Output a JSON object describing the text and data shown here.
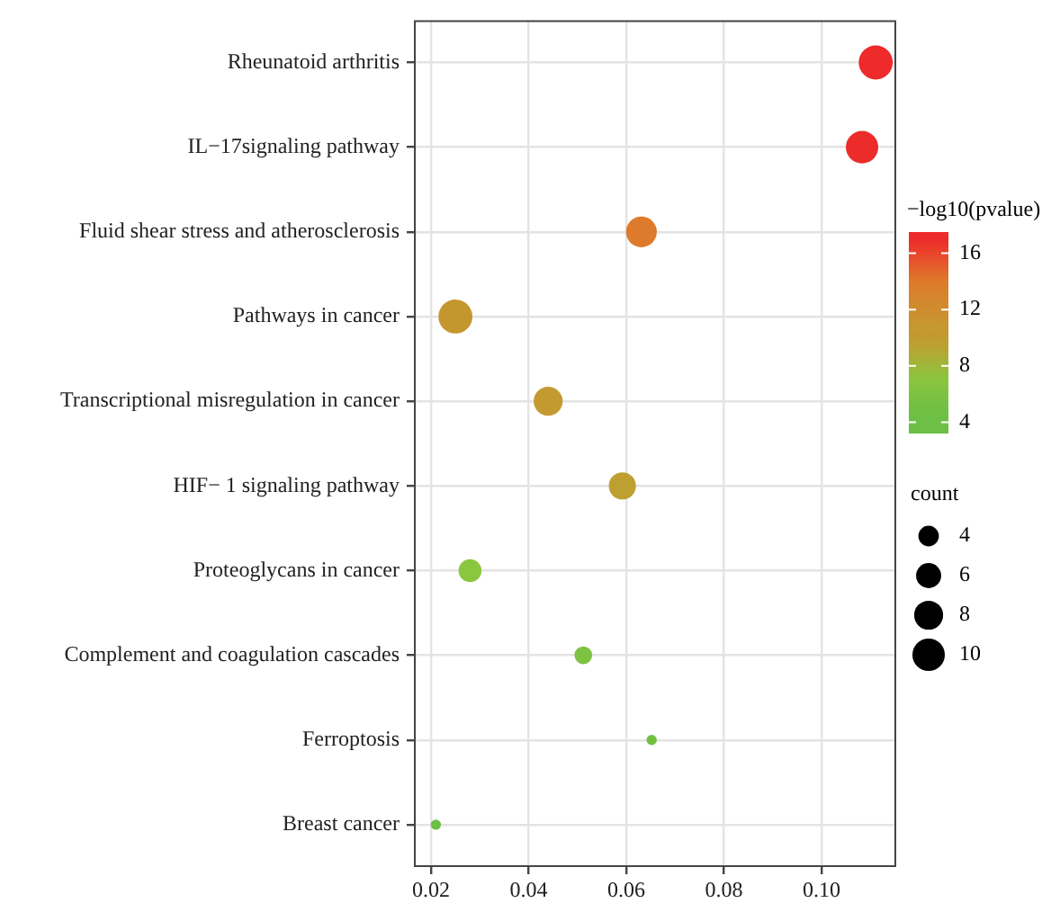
{
  "chart_data": {
    "type": "bubble",
    "categories": [
      "Rheunatoid arthritis",
      "IL−17signaling pathway",
      "Fluid shear stress and atherosclerosis",
      "Pathways in cancer",
      "Transcriptional misregulation in cancer",
      "HIF− 1 signaling pathway",
      "Proteoglycans in cancer",
      "Complement and coagulation cascades",
      "Ferroptosis",
      "Breast cancer"
    ],
    "orientation": "horizontal",
    "values": [
      0.1111,
      0.1083,
      0.0631,
      0.025,
      0.044,
      0.0592,
      0.028,
      0.0512,
      0.0652,
      0.021
    ],
    "sizes": [
      11,
      10,
      9,
      11,
      8,
      7,
      5,
      3,
      1,
      1
    ],
    "cvalues": [
      17,
      17,
      14,
      10.5,
      10.5,
      9.5,
      7,
      6,
      5,
      4.5
    ],
    "colors": [
      "#ee2a2a",
      "#ec2c2a",
      "#de7a2c",
      "#c4962e",
      "#c49a30",
      "#bda030",
      "#8bc63f",
      "#7dc242",
      "#72c042",
      "#6dbf45"
    ],
    "xlim": [
      0.0165,
      0.1153
    ],
    "xticks": [
      0.02,
      0.04,
      0.06,
      0.08,
      {
        "value": 0.1,
        "label": "0.10"
      }
    ],
    "clabel": "−log10(pvalue)",
    "clim": [
      3.2,
      17.5
    ],
    "cticks": [
      4,
      8,
      12,
      16
    ],
    "legend_title": "count",
    "size_legend": [
      4,
      6,
      8,
      10
    ],
    "grid": true
  }
}
